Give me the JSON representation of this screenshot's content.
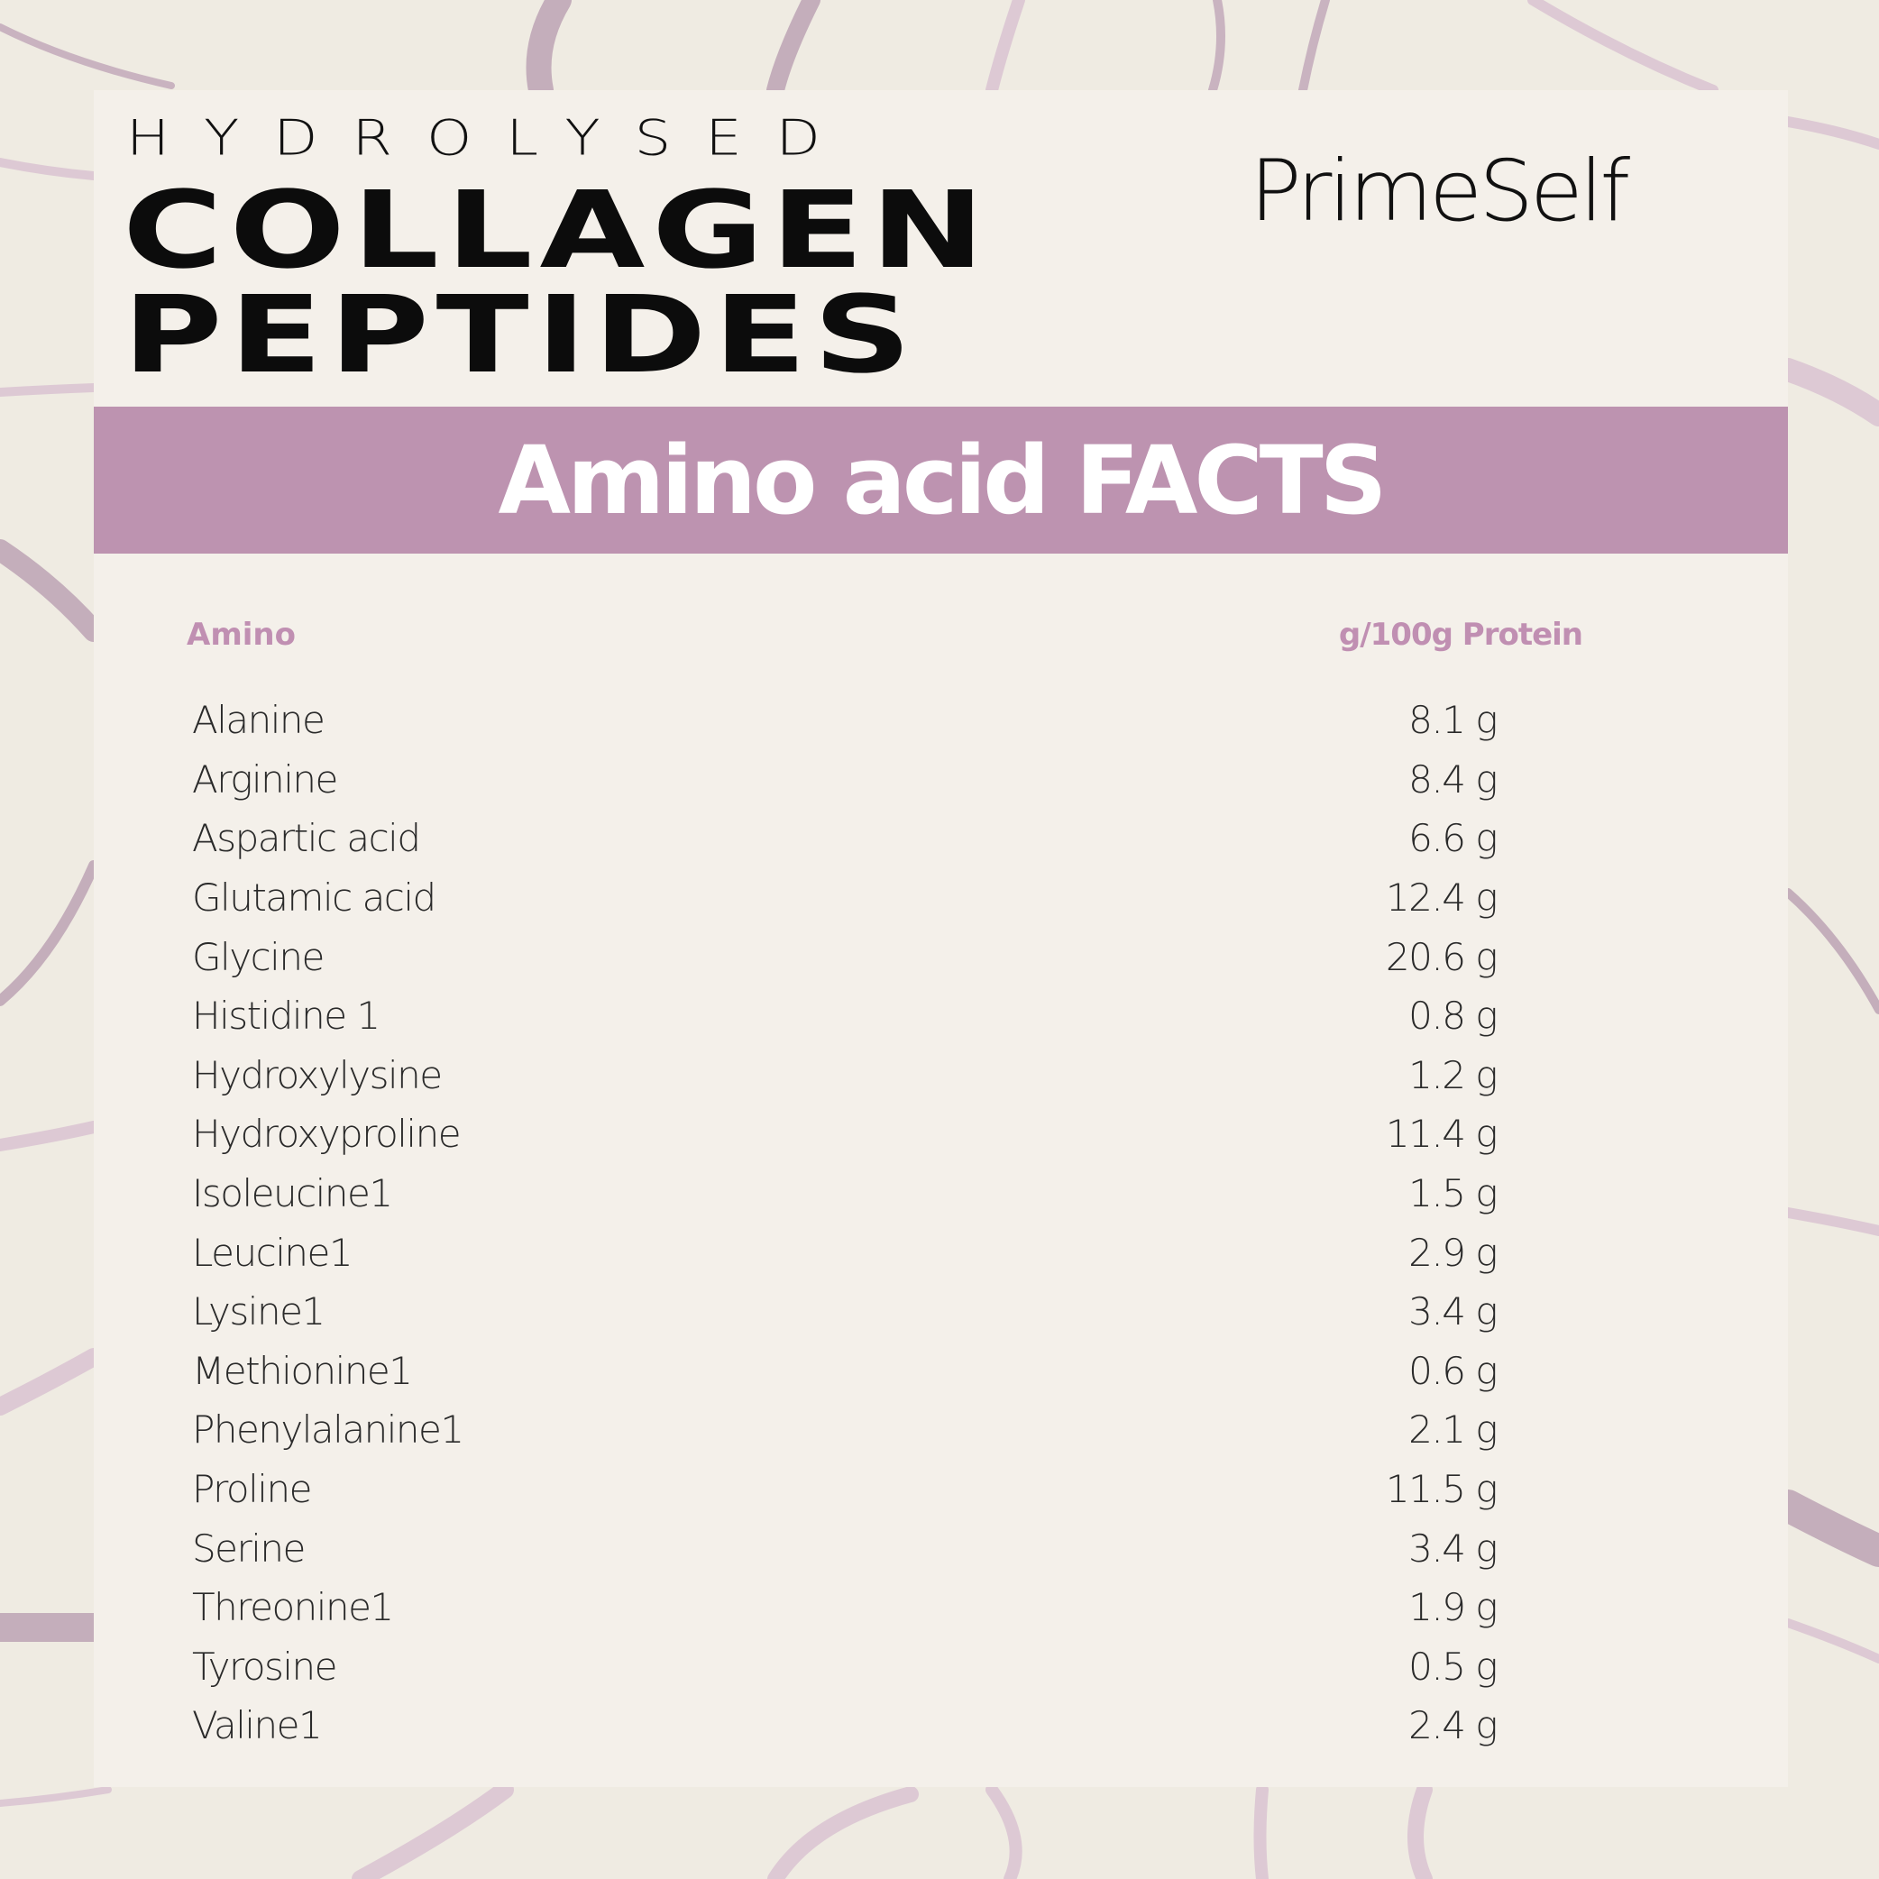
{
  "product": {
    "line1": "HYDROLYSED",
    "line2": "COLLAGEN",
    "line3": "PEPTIDES"
  },
  "brand": "PrimeSelf",
  "banner": "Amino acid FACTS",
  "table": {
    "headers": [
      "Amino",
      "g/100g Protein"
    ],
    "rows": [
      {
        "name": "Alanine",
        "value": "8.1 g"
      },
      {
        "name": "Arginine",
        "value": "8.4 g"
      },
      {
        "name": "Aspartic acid",
        "value": "6.6 g"
      },
      {
        "name": "Glutamic acid",
        "value": "12.4 g"
      },
      {
        "name": "Glycine",
        "value": "20.6 g"
      },
      {
        "name": "Histidine 1",
        "value": "0.8 g"
      },
      {
        "name": "Hydroxylysine",
        "value": "1.2 g"
      },
      {
        "name": "Hydroxyproline",
        "value": "11.4 g"
      },
      {
        "name": "Isoleucine1",
        "value": "1.5 g"
      },
      {
        "name": "Leucine1",
        "value": "2.9 g"
      },
      {
        "name": "Lysine1",
        "value": "3.4 g"
      },
      {
        "name": "Methionine1",
        "value": "0.6 g"
      },
      {
        "name": "Phenylalanine1",
        "value": "2.1 g"
      },
      {
        "name": "Proline",
        "value": "11.5 g"
      },
      {
        "name": "Serine",
        "value": "3.4 g"
      },
      {
        "name": "Threonine1",
        "value": "1.9 g"
      },
      {
        "name": "Tyrosine",
        "value": "0.5 g"
      },
      {
        "name": "Valine1",
        "value": "2.4 g"
      }
    ]
  },
  "colors": {
    "accent": "#bd93b0",
    "background": "#efebe2",
    "card": "#f4f0ea",
    "text": "#111111"
  }
}
